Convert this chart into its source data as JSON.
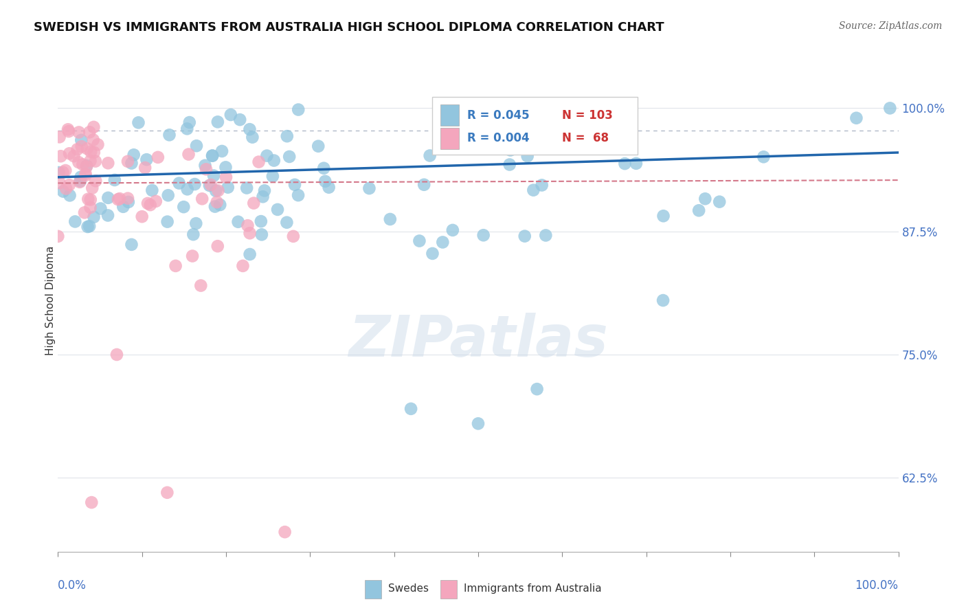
{
  "title": "SWEDISH VS IMMIGRANTS FROM AUSTRALIA HIGH SCHOOL DIPLOMA CORRELATION CHART",
  "source": "Source: ZipAtlas.com",
  "ylabel": "High School Diploma",
  "yaxis_labels": [
    "62.5%",
    "75.0%",
    "87.5%",
    "100.0%"
  ],
  "yaxis_values": [
    0.625,
    0.75,
    0.875,
    1.0
  ],
  "legend_blue": {
    "R": "0.045",
    "N": "103",
    "label": "Swedes"
  },
  "legend_pink": {
    "R": "0.004",
    "N": " 68",
    "label": "Immigrants from Australia"
  },
  "blue_color": "#92c5de",
  "pink_color": "#f4a6bd",
  "blue_line_color": "#2166ac",
  "pink_line_color": "#d4788a",
  "dot_line_color": "#b0b8c8",
  "watermark": "ZIPatlas",
  "blue_R": 0.045,
  "pink_R": 0.004,
  "xlim": [
    0.0,
    1.0
  ],
  "ylim": [
    0.55,
    1.06
  ]
}
